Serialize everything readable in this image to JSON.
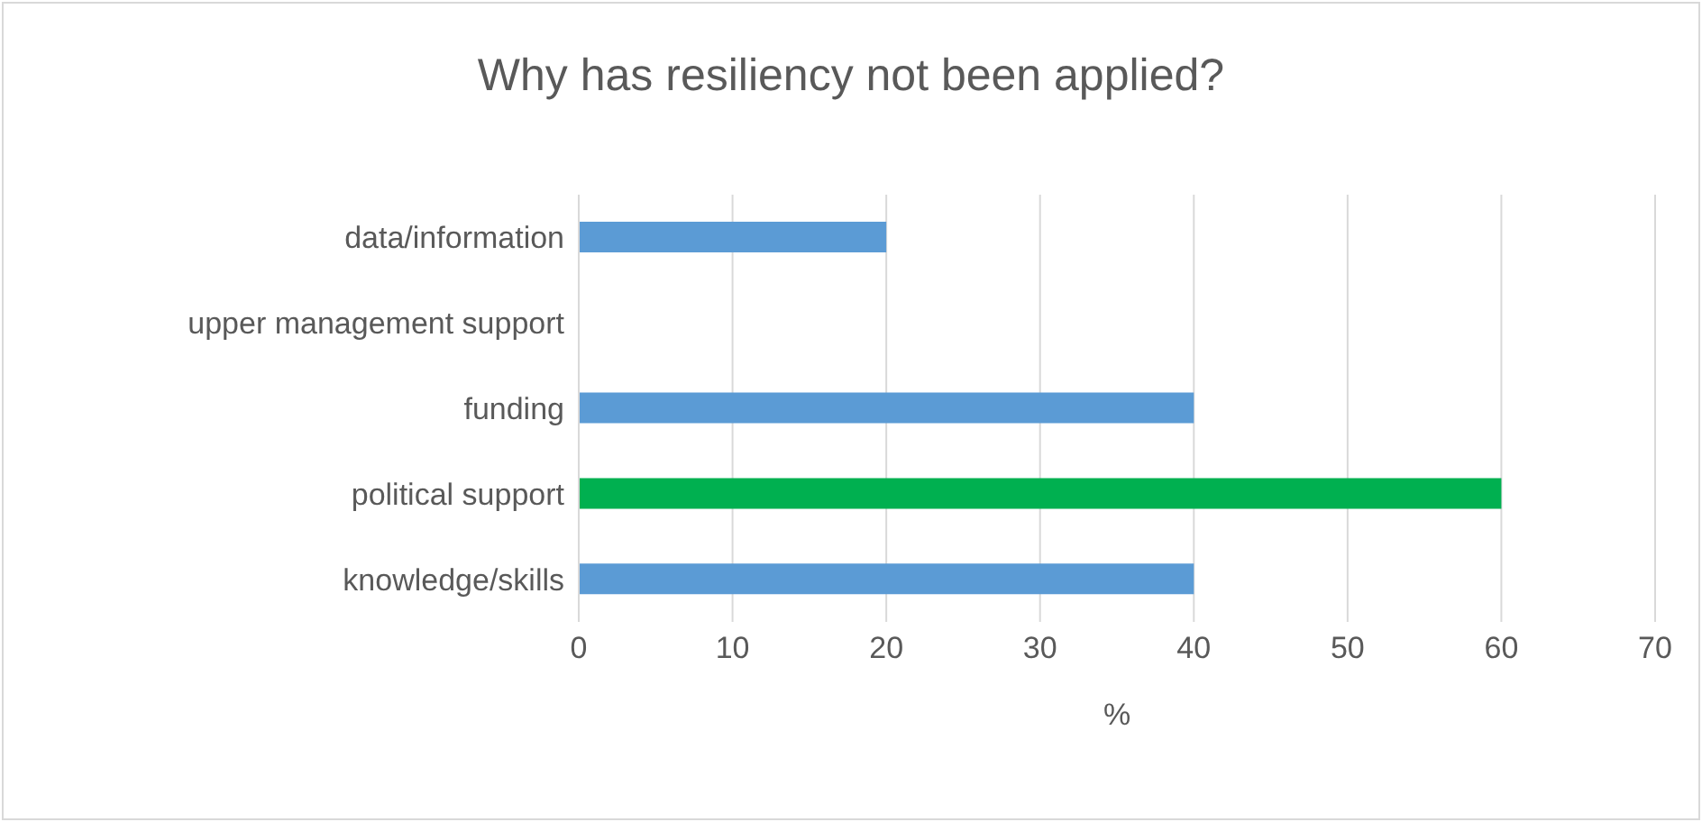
{
  "chart_data": {
    "type": "bar",
    "orientation": "horizontal",
    "title": "Why has resiliency not been applied?",
    "xlabel": "%",
    "categories": [
      "data/information",
      "upper management support",
      "funding",
      "political support",
      "knowledge/skills"
    ],
    "values": [
      20,
      0,
      40,
      60,
      40
    ],
    "colors": [
      "#5b9bd5",
      "#5b9bd5",
      "#5b9bd5",
      "#00b050",
      "#5b9bd5"
    ],
    "xlim": [
      0,
      70
    ],
    "xticks": [
      0,
      10,
      20,
      30,
      40,
      50,
      60,
      70
    ],
    "grid": "x",
    "legend": false
  }
}
